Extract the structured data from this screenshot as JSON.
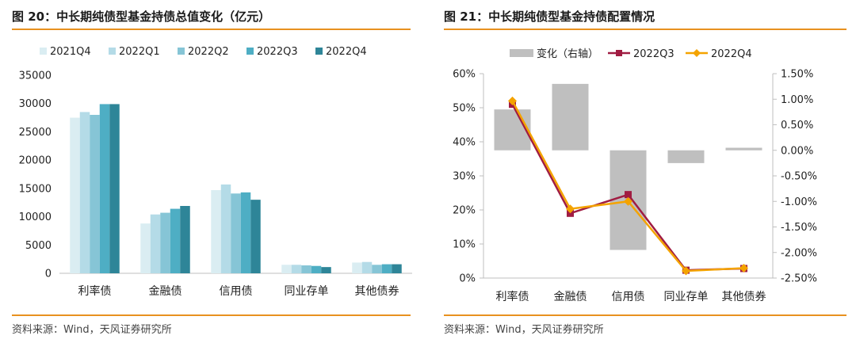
{
  "left": {
    "title": "图 20：中长期纯债型基金持债总值变化（亿元）",
    "source": "资料来源：Wind，天风证券研究所"
  },
  "right": {
    "title": "图 21：中长期纯债型基金持债配置情况",
    "source": "资料来源：Wind，天风证券研究所"
  },
  "chart_data": [
    {
      "type": "bar",
      "title": "图 20：中长期纯债型基金持债总值变化（亿元）",
      "categories": [
        "利率债",
        "金融债",
        "信用债",
        "同业存单",
        "其他债券"
      ],
      "ylim": [
        0,
        35000
      ],
      "yticks": [
        "0",
        "5000",
        "10000",
        "15000",
        "20000",
        "25000",
        "30000",
        "35000"
      ],
      "legend_position": "top",
      "grid": false,
      "series": [
        {
          "name": "2021Q4",
          "color": "#daedf2",
          "values": [
            27500,
            8800,
            14700,
            1500,
            1900
          ]
        },
        {
          "name": "2022Q1",
          "color": "#b4dbe7",
          "values": [
            28500,
            10400,
            15700,
            1500,
            2000
          ]
        },
        {
          "name": "2022Q2",
          "color": "#86c5d6",
          "values": [
            28000,
            10700,
            14100,
            1400,
            1500
          ]
        },
        {
          "name": "2022Q3",
          "color": "#4eaec4",
          "values": [
            29900,
            11400,
            14300,
            1300,
            1600
          ]
        },
        {
          "name": "2022Q4",
          "color": "#2e8598",
          "values": [
            29900,
            11900,
            13000,
            1100,
            1600
          ]
        }
      ]
    },
    {
      "type": "bar+line",
      "title": "图 21：中长期纯债型基金持债配置情况",
      "categories": [
        "利率债",
        "金融债",
        "信用债",
        "同业存单",
        "其他债券"
      ],
      "ylim_left": [
        0,
        60
      ],
      "yticks_left": [
        "0%",
        "10%",
        "20%",
        "30%",
        "40%",
        "50%",
        "60%"
      ],
      "ylim_right": [
        -2.5,
        1.5
      ],
      "yticks_right": [
        "-2.50%",
        "-2.00%",
        "-1.50%",
        "-1.00%",
        "-0.50%",
        "0.00%",
        "0.50%",
        "1.00%",
        "1.50%"
      ],
      "legend_position": "top",
      "grid": false,
      "bars": {
        "name": "变化（右轴）",
        "color": "#bfbfbf",
        "axis": "right",
        "values": [
          0.8,
          1.3,
          -1.95,
          -0.25,
          0.05
        ]
      },
      "series": [
        {
          "name": "2022Q3",
          "color": "#a01c42",
          "marker": "square",
          "axis": "left",
          "values": [
            51,
            19,
            24.5,
            2.3,
            2.8
          ]
        },
        {
          "name": "2022Q4",
          "color": "#f4a300",
          "marker": "diamond",
          "axis": "left",
          "values": [
            52,
            20.3,
            22.5,
            2.1,
            2.9
          ]
        }
      ]
    }
  ]
}
